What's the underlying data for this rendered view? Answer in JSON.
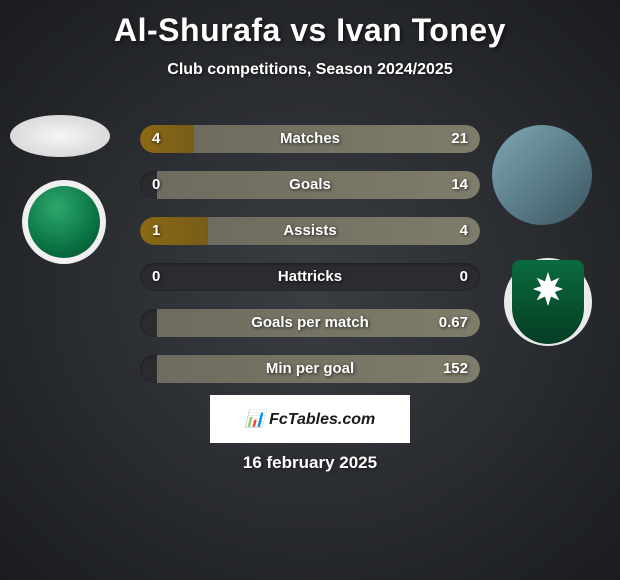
{
  "header": {
    "title": "Al-Shurafa vs Ivan Toney",
    "subtitle": "Club competitions, Season 2024/2025"
  },
  "stats": [
    {
      "label": "Matches",
      "left_value": "4",
      "right_value": "21",
      "left_pct": 16,
      "right_pct": 84,
      "left_color": "#8b6914",
      "right_color": "#7f7c6a"
    },
    {
      "label": "Goals",
      "left_value": "0",
      "right_value": "14",
      "left_pct": 0,
      "right_pct": 95,
      "left_color": "#8b6914",
      "right_color": "#7f7c6a"
    },
    {
      "label": "Assists",
      "left_value": "1",
      "right_value": "4",
      "left_pct": 20,
      "right_pct": 80,
      "left_color": "#8b6914",
      "right_color": "#7f7c6a"
    },
    {
      "label": "Hattricks",
      "left_value": "0",
      "right_value": "0",
      "left_pct": 0,
      "right_pct": 0,
      "left_color": "#8b6914",
      "right_color": "#7f7c6a"
    },
    {
      "label": "Goals per match",
      "left_value": "",
      "right_value": "0.67",
      "left_pct": 0,
      "right_pct": 95,
      "left_color": "#8b6914",
      "right_color": "#7f7c6a"
    },
    {
      "label": "Min per goal",
      "left_value": "",
      "right_value": "152",
      "left_pct": 0,
      "right_pct": 95,
      "left_color": "#8b6914",
      "right_color": "#7f7c6a"
    }
  ],
  "watermark_text": "📊 FcTables.com",
  "footer_date": "16 february 2025",
  "colors": {
    "bg_center": "#3a3d42",
    "bg_edge": "#1a1c1f",
    "text": "#ffffff",
    "bar_bg": "#2a2c30"
  }
}
